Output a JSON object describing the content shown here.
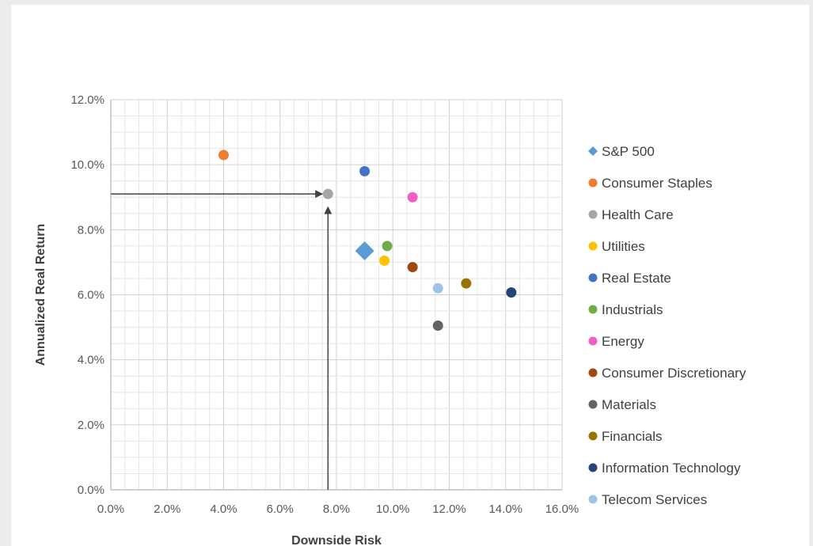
{
  "chart_data": {
    "type": "scatter",
    "xlabel": "Downside Risk",
    "ylabel": "Annualized Real Return",
    "xlim": [
      0,
      16
    ],
    "ylim": [
      0,
      12
    ],
    "x_ticks": [
      "0.0%",
      "2.0%",
      "4.0%",
      "6.0%",
      "8.0%",
      "10.0%",
      "12.0%",
      "14.0%",
      "16.0%"
    ],
    "y_ticks": [
      "0.0%",
      "2.0%",
      "4.0%",
      "6.0%",
      "8.0%",
      "10.0%",
      "12.0%"
    ],
    "grid": true,
    "legend_position": "right",
    "series": [
      {
        "name": "S&P 500",
        "x": 9.0,
        "y": 7.35,
        "color": "#5b9bd5",
        "marker": "diamond"
      },
      {
        "name": "Consumer Staples",
        "x": 4.0,
        "y": 10.3,
        "color": "#ed7d31",
        "marker": "circle"
      },
      {
        "name": "Health Care",
        "x": 7.7,
        "y": 9.1,
        "color": "#a5a5a5",
        "marker": "circle"
      },
      {
        "name": "Utilities",
        "x": 9.7,
        "y": 7.05,
        "color": "#ffc000",
        "marker": "circle"
      },
      {
        "name": "Real Estate",
        "x": 9.0,
        "y": 9.8,
        "color": "#4472c4",
        "marker": "circle"
      },
      {
        "name": "Industrials",
        "x": 9.8,
        "y": 7.5,
        "color": "#70ad47",
        "marker": "circle"
      },
      {
        "name": "Energy",
        "x": 10.7,
        "y": 9.0,
        "color": "#ef5fc8",
        "marker": "circle"
      },
      {
        "name": "Consumer Discretionary",
        "x": 10.7,
        "y": 6.85,
        "color": "#9e480e",
        "marker": "circle"
      },
      {
        "name": "Materials",
        "x": 11.6,
        "y": 5.05,
        "color": "#636363",
        "marker": "circle"
      },
      {
        "name": "Financials",
        "x": 12.6,
        "y": 6.35,
        "color": "#997300",
        "marker": "circle"
      },
      {
        "name": "Information Technology",
        "x": 14.2,
        "y": 6.07,
        "color": "#264478",
        "marker": "circle"
      },
      {
        "name": "Telecom Services",
        "x": 11.6,
        "y": 6.2,
        "color": "#9dc3e6",
        "marker": "circle"
      }
    ],
    "annotations": [
      {
        "type": "arrow",
        "from": [
          0,
          9.1
        ],
        "to": [
          7.5,
          9.1
        ]
      },
      {
        "type": "arrow",
        "from": [
          7.7,
          0
        ],
        "to": [
          7.7,
          8.7
        ]
      }
    ]
  }
}
